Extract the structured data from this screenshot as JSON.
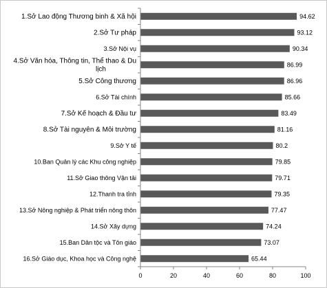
{
  "chart_data": {
    "type": "bar",
    "orientation": "horizontal",
    "categories": [
      "1.Sở Lao động Thương binh & Xã hội",
      "2.Sở Tư pháp",
      "3.Sở Nội vụ",
      "4.Sở Văn hóa, Thông tin, Thể thao & Du lịch",
      "5.Sở Công thương",
      "6.Sở Tài chính",
      "7.Sở Kế hoạch & Đầu tư",
      "8.Sở Tài nguyên & Môi trường",
      "9.Sở Y tế",
      "10.Ban Quản lý các Khu công nghiệp",
      "11.Sở Giao thông Vận tải",
      "12.Thanh tra tỉnh",
      "13.Sở Nông nghiệp & Phát triển nông thôn",
      "14.Sở Xây dựng",
      "15.Ban Dân tộc và Tôn giáo",
      "16.Sở Giáo dục, Khoa học và Công nghệ"
    ],
    "values": [
      94.62,
      93.12,
      90.34,
      86.99,
      86.96,
      85.66,
      83.49,
      81.16,
      80.2,
      79.85,
      79.71,
      79.35,
      77.47,
      74.24,
      73.07,
      65.44
    ],
    "value_labels": [
      "94.62",
      "93.12",
      "90.34",
      "86.99",
      "86.96",
      "85.66",
      "83.49",
      "81.16",
      "80.2",
      "79.85",
      "79.71",
      "79.35",
      "77.47",
      "74.24",
      "73.07",
      "65.44"
    ],
    "xlim": [
      0,
      100
    ],
    "x_ticks": [
      0,
      20,
      40,
      60,
      80,
      100
    ],
    "x_tick_labels": [
      "0",
      "20",
      "40",
      "60",
      "80",
      "100"
    ],
    "bar_color": "#595959",
    "axis_color": "#868686",
    "title": "",
    "xlabel": "",
    "ylabel": "",
    "grid": false,
    "legend": "none"
  }
}
